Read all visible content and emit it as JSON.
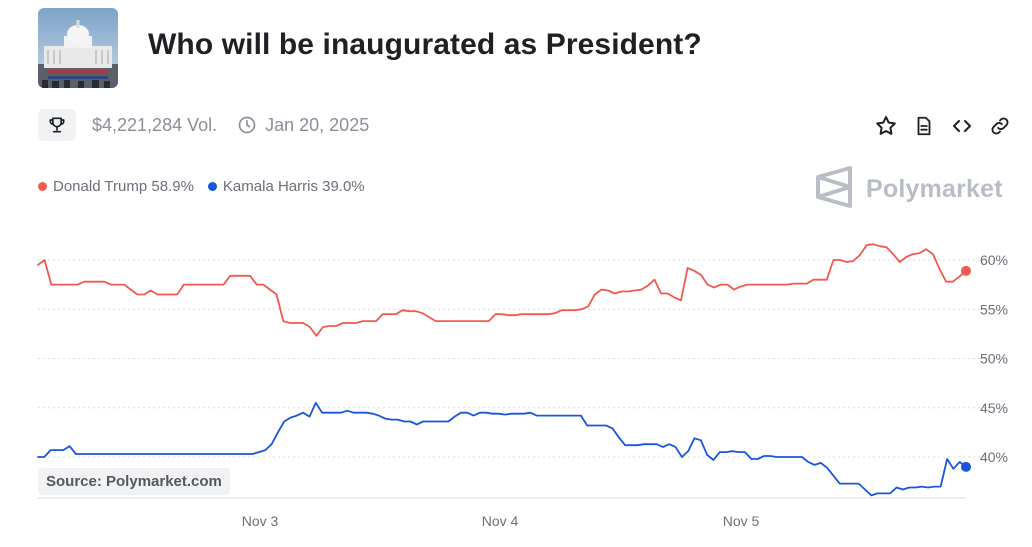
{
  "market": {
    "title": "Who will be inaugurated as President?",
    "volume": "$4,221,284 Vol.",
    "end_date": "Jan 20, 2025",
    "thumbnail_icon": "capitol-building-icon",
    "brand": "Polymarket",
    "source": "Source: Polymarket.com"
  },
  "legend": {
    "trump": "Donald Trump 58.9%",
    "harris": "Kamala Harris 39.0%"
  },
  "icons": {
    "trophy": "trophy-icon",
    "clock": "clock-icon",
    "star": "star-icon",
    "document": "document-icon",
    "embed": "code-embed-icon",
    "link": "link-icon",
    "brand_logo": "polymarket-logo-icon"
  },
  "colors": {
    "trump": "#f05a4f",
    "harris": "#1a56db",
    "grid": "#d9dce1",
    "axis_text": "#6b7078"
  },
  "chart_data": {
    "type": "line",
    "title": "",
    "xlabel": "",
    "ylabel": "",
    "x_ticks": [
      "Nov 3",
      "Nov 4",
      "Nov 5"
    ],
    "y_ticks": [
      "60%",
      "55%",
      "50%",
      "45%",
      "40%"
    ],
    "ylim": [
      36.0,
      62.5
    ],
    "grid": true,
    "legend_position": "top-left",
    "series": [
      {
        "name": "Donald Trump",
        "last_value": 58.9,
        "values": [
          59.5,
          60.0,
          57.5,
          57.5,
          57.5,
          57.5,
          57.5,
          57.8,
          57.8,
          57.8,
          57.8,
          57.5,
          57.5,
          57.5,
          57.0,
          56.5,
          56.5,
          56.9,
          56.5,
          56.5,
          56.5,
          56.5,
          57.5,
          57.5,
          57.5,
          57.5,
          57.5,
          57.5,
          57.5,
          58.4,
          58.4,
          58.4,
          58.4,
          57.5,
          57.5,
          57.0,
          56.5,
          53.8,
          53.6,
          53.6,
          53.6,
          53.2,
          52.3,
          53.2,
          53.3,
          53.3,
          53.6,
          53.6,
          53.6,
          53.8,
          53.8,
          53.8,
          54.5,
          54.5,
          54.5,
          54.9,
          54.8,
          54.8,
          54.6,
          54.2,
          53.8,
          53.8,
          53.8,
          53.8,
          53.8,
          53.8,
          53.8,
          53.8,
          53.8,
          54.5,
          54.5,
          54.4,
          54.4,
          54.5,
          54.5,
          54.5,
          54.5,
          54.5,
          54.6,
          54.9,
          54.9,
          54.9,
          55.0,
          55.3,
          56.5,
          57.0,
          56.9,
          56.6,
          56.8,
          56.8,
          56.9,
          57.0,
          57.4,
          58.0,
          56.6,
          56.6,
          56.2,
          55.9,
          59.2,
          58.9,
          58.5,
          57.5,
          57.2,
          57.5,
          57.5,
          57.0,
          57.3,
          57.5,
          57.5,
          57.5,
          57.5,
          57.5,
          57.5,
          57.5,
          57.6,
          57.6,
          57.6,
          58.0,
          58.0,
          58.0,
          60.0,
          60.0,
          59.8,
          59.9,
          60.5,
          61.5,
          61.6,
          61.4,
          61.3,
          60.6,
          59.8,
          60.3,
          60.6,
          60.7,
          61.1,
          60.6,
          59.1,
          57.8,
          57.8,
          58.3,
          58.9
        ]
      },
      {
        "name": "Kamala Harris",
        "last_value": 39.0,
        "values": [
          40.0,
          40.0,
          40.7,
          40.7,
          40.7,
          41.1,
          40.3,
          40.3,
          40.3,
          40.3,
          40.3,
          40.3,
          40.3,
          40.3,
          40.3,
          40.3,
          40.3,
          40.3,
          40.3,
          40.3,
          40.3,
          40.3,
          40.3,
          40.3,
          40.3,
          40.3,
          40.3,
          40.3,
          40.3,
          40.3,
          40.3,
          40.3,
          40.3,
          40.3,
          40.3,
          40.5,
          40.7,
          41.3,
          42.5,
          43.6,
          44.0,
          44.2,
          44.5,
          44.1,
          45.5,
          44.5,
          44.5,
          44.5,
          44.5,
          44.7,
          44.5,
          44.5,
          44.5,
          44.4,
          44.2,
          43.9,
          43.8,
          43.8,
          43.6,
          43.6,
          43.3,
          43.6,
          43.6,
          43.6,
          43.6,
          43.6,
          44.1,
          44.5,
          44.5,
          44.2,
          44.5,
          44.5,
          44.4,
          44.4,
          44.3,
          44.4,
          44.4,
          44.4,
          44.5,
          44.2,
          44.2,
          44.2,
          44.2,
          44.2,
          44.2,
          44.2,
          44.2,
          43.2,
          43.2,
          43.2,
          43.2,
          42.9,
          42.0,
          41.2,
          41.2,
          41.2,
          41.3,
          41.3,
          41.3,
          41.0,
          41.3,
          41.0,
          40.0,
          40.6,
          41.9,
          41.7,
          40.2,
          39.7,
          40.5,
          40.5,
          40.6,
          40.5,
          40.5,
          39.8,
          39.8,
          40.1,
          40.1,
          40.0,
          40.0,
          40.0,
          40.0,
          40.0,
          39.5,
          39.2,
          39.4,
          38.9,
          38.1,
          37.3,
          37.3,
          37.3,
          37.3,
          36.7,
          36.1,
          36.3,
          36.3,
          36.3,
          36.9,
          36.7,
          36.9,
          36.9,
          37.0,
          36.9,
          37.0,
          37.0,
          39.8,
          38.8,
          39.5,
          39.0
        ]
      }
    ]
  }
}
